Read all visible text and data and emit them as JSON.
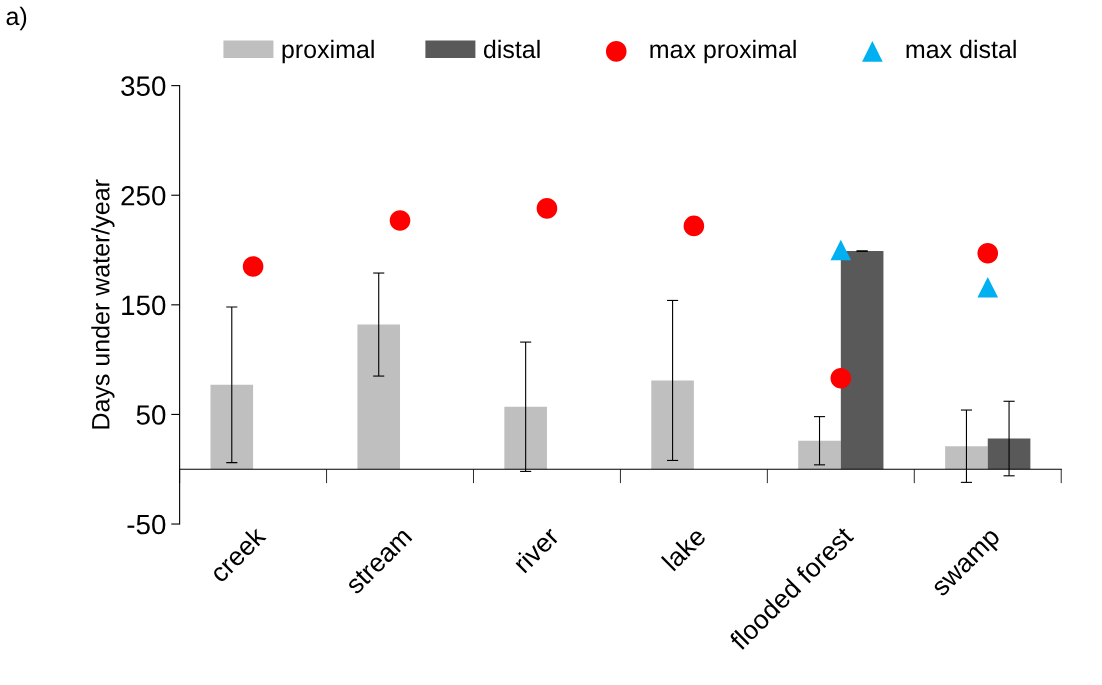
{
  "chart_data": {
    "type": "bar",
    "ylabel": "Days under water/year",
    "annotations": [
      "a)"
    ],
    "categories": [
      "creek",
      "stream",
      "river",
      "lake",
      "flooded forest",
      "swamp"
    ],
    "series": [
      {
        "name": "proximal",
        "color": "#bfbfbf",
        "values": [
          77,
          132,
          57,
          81,
          26,
          21
        ],
        "errors": [
          71,
          47,
          59,
          73,
          22,
          33
        ]
      },
      {
        "name": "distal",
        "color": "#595959",
        "values": [
          null,
          null,
          null,
          null,
          199,
          28
        ],
        "errors": [
          null,
          null,
          null,
          null,
          0,
          34
        ]
      },
      {
        "name": "max proximal",
        "type": "scatter",
        "marker": "circle",
        "color": "#ff0000",
        "values": [
          185,
          227,
          238,
          222,
          83,
          197
        ]
      },
      {
        "name": "max distal",
        "type": "scatter",
        "marker": "triangle",
        "color": "#00b0f0",
        "values": [
          null,
          null,
          null,
          null,
          200,
          166
        ]
      }
    ],
    "ylim": [
      -50,
      350
    ],
    "yticks": [
      -50,
      50,
      150,
      250,
      350
    ],
    "legend": "top",
    "grid": false
  }
}
